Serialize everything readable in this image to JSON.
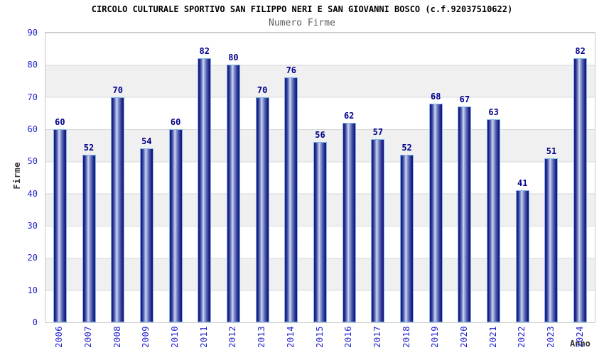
{
  "chart_data": {
    "type": "bar",
    "title": "CIRCOLO CULTURALE SPORTIVO SAN FILIPPO NERI E SAN GIOVANNI BOSCO (c.f.92037510622)",
    "subtitle": "Numero Firme",
    "xlabel": "Anno",
    "ylabel": "Firme",
    "categories": [
      "2006",
      "2007",
      "2008",
      "2009",
      "2010",
      "2011",
      "2012",
      "2013",
      "2014",
      "2015",
      "2016",
      "2017",
      "2018",
      "2019",
      "2020",
      "2021",
      "2022",
      "2023",
      "2024"
    ],
    "values": [
      60,
      52,
      70,
      54,
      60,
      82,
      80,
      70,
      76,
      56,
      62,
      57,
      52,
      68,
      67,
      63,
      41,
      51,
      82
    ],
    "ylim": [
      0,
      90
    ],
    "yticks": [
      0,
      10,
      20,
      30,
      40,
      50,
      60,
      70,
      80,
      90
    ],
    "legend": "none",
    "grid": "horizontal gridlines every 10 with alternating gray bands",
    "value_labels": "above each bar"
  },
  "colors": {
    "title": "#000000",
    "subtitle": "#5f5f5f",
    "tick_label": "#2222cc",
    "value_label": "#00008b",
    "axis_title": "#333333",
    "bar_dark": "#15157a",
    "bar_highlight": "#d3daf2",
    "bar_border": "#7eb6e8",
    "band_gray": "#f0f0f0",
    "plot_border": "#c8c8c8",
    "background": "#ffffff"
  }
}
